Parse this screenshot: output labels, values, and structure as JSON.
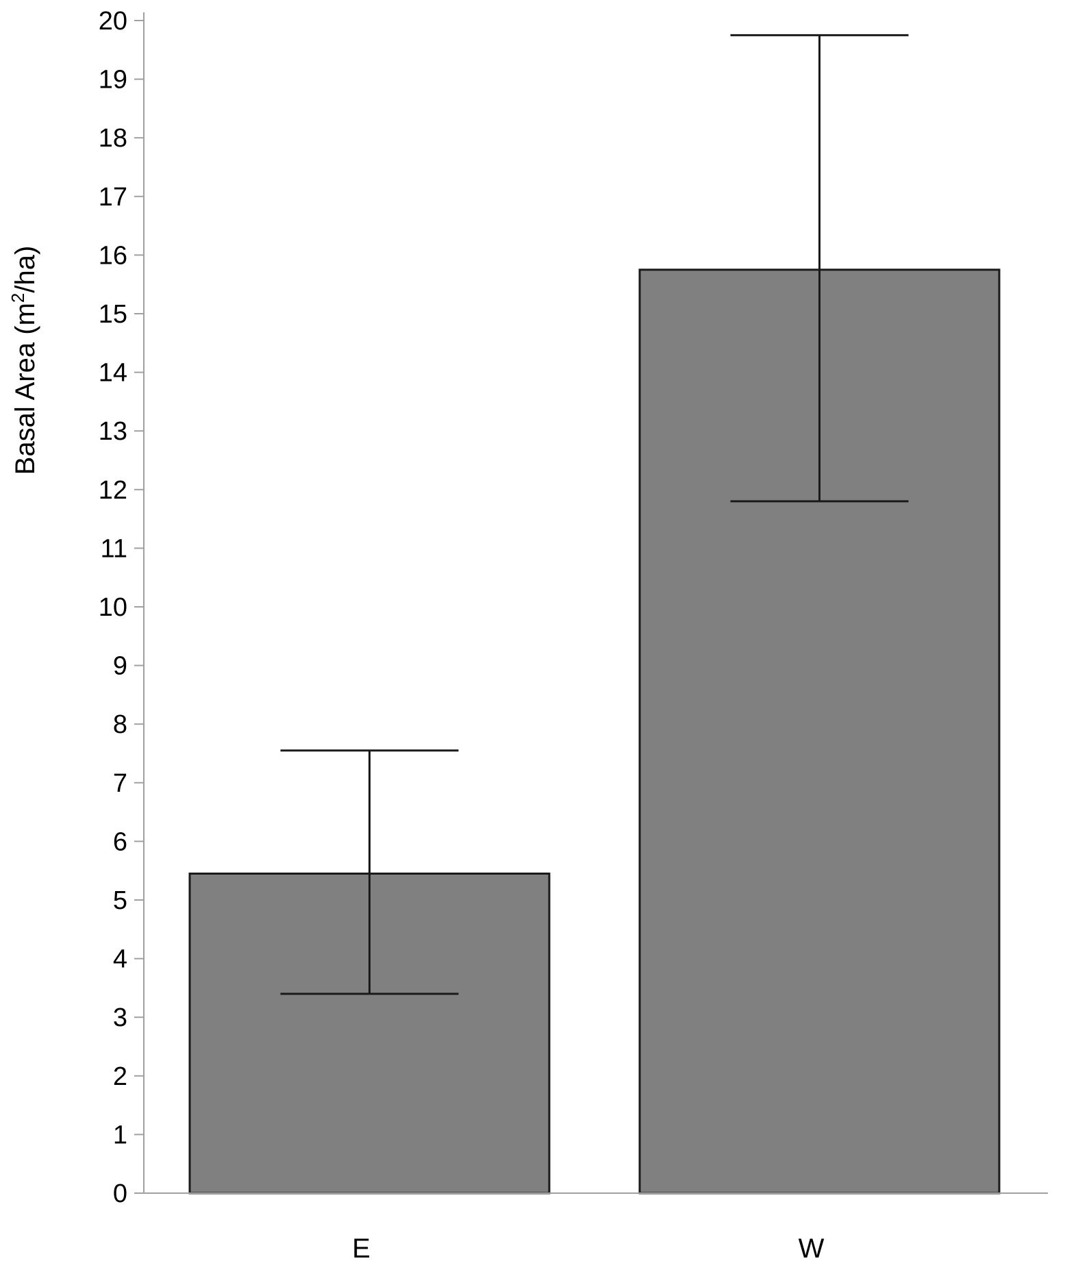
{
  "chart_data": {
    "type": "bar",
    "categories": [
      "E",
      "W"
    ],
    "values": [
      5.45,
      15.75
    ],
    "error_upper": [
      7.55,
      19.75
    ],
    "error_lower": [
      3.4,
      11.8
    ],
    "title": "",
    "xlabel": "",
    "ylabel": "Basal Area (m²/ha)",
    "ylabel_parts": {
      "before": "Basal Area (m",
      "sup": "2",
      "after": "/ha)"
    },
    "ylim": [
      0,
      20
    ],
    "yticks": [
      0,
      1,
      2,
      3,
      4,
      5,
      6,
      7,
      8,
      9,
      10,
      11,
      12,
      13,
      14,
      15,
      16,
      17,
      18,
      19,
      20
    ],
    "grid": false,
    "legend": "none",
    "bar_color": "#808080"
  }
}
